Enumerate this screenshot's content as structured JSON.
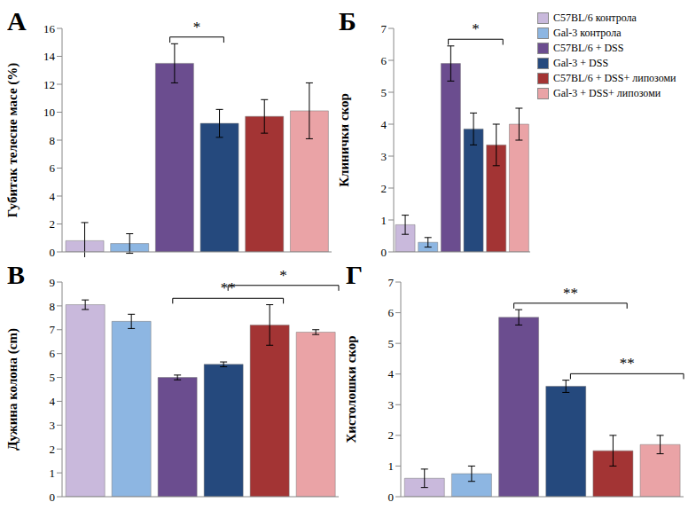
{
  "chart_data": [
    {
      "type": "bar",
      "label": "А",
      "y_label": "Губитак телесне масе (%)",
      "categories": [
        "C57BL/6 контрола",
        "Gal-3 контрола",
        "C57BL/6 + DSS",
        "Gal-3 + DSS",
        "C57BL/6 + DSS+ липозоми",
        "Gal-3 + DSS+ липозоми"
      ],
      "colors": [
        "#c9b9dc",
        "#8db6e2",
        "#6b4d8f",
        "#25497d",
        "#a33434",
        "#eaa3a6"
      ],
      "values": [
        0.8,
        0.6,
        13.5,
        9.2,
        9.7,
        10.1
      ],
      "errors": [
        1.3,
        0.7,
        1.4,
        1.0,
        1.2,
        2.0
      ],
      "ylim": [
        0,
        16
      ],
      "yticks": [
        0,
        2,
        4,
        6,
        8,
        10,
        12,
        14,
        16
      ],
      "tick_labels": "y",
      "annotations": [
        {
          "from": 2,
          "to": 3,
          "text": "*"
        }
      ]
    },
    {
      "type": "bar",
      "label": "Б",
      "y_label": "Клинички скор",
      "categories": [
        "C57BL/6 контрола",
        "Gal-3 контрола",
        "C57BL/6 + DSS",
        "Gal-3 + DSS",
        "C57BL/6 + DSS+ липозоми",
        "Gal-3 + DSS+ липозоми"
      ],
      "colors": [
        "#c9b9dc",
        "#8db6e2",
        "#6b4d8f",
        "#25497d",
        "#a33434",
        "#eaa3a6"
      ],
      "values": [
        0.85,
        0.3,
        5.9,
        3.85,
        3.35,
        4.0
      ],
      "errors": [
        0.3,
        0.15,
        0.55,
        0.5,
        0.65,
        0.5
      ],
      "ylim": [
        0,
        7
      ],
      "yticks": [
        0,
        1,
        2,
        3,
        4,
        5,
        6,
        7
      ],
      "tick_labels": "y",
      "legend": "right",
      "annotations": [
        {
          "from": 2,
          "to": 4,
          "text": "*"
        }
      ]
    },
    {
      "type": "bar",
      "label": "В",
      "y_label": "Дужина колона (cm)",
      "categories": [
        "C57BL/6 контрола",
        "Gal-3 контрола",
        "C57BL/6 + DSS",
        "Gal-3 + DSS",
        "C57BL/6 + DSS+ липозоми",
        "Gal-3 + DSS+ липозоми"
      ],
      "colors": [
        "#c9b9dc",
        "#8db6e2",
        "#6b4d8f",
        "#25497d",
        "#a33434",
        "#eaa3a6"
      ],
      "values": [
        8.05,
        7.35,
        5.0,
        5.55,
        7.2,
        6.9
      ],
      "errors": [
        0.2,
        0.3,
        0.1,
        0.1,
        0.85,
        0.1
      ],
      "ylim": [
        0,
        9
      ],
      "yticks": [
        0,
        1,
        2,
        3,
        4,
        5,
        6,
        7,
        8,
        9
      ],
      "tick_labels": "y",
      "annotations": [
        {
          "from": 2,
          "to": 4,
          "text": "**"
        },
        {
          "from": 3,
          "to": 5,
          "text": "*"
        }
      ]
    },
    {
      "type": "bar",
      "label": "Г",
      "y_label": "Хистолошки скор",
      "categories": [
        "C57BL/6 контрола",
        "Gal-3 контрола",
        "C57BL/6 + DSS",
        "Gal-3 + DSS",
        "C57BL/6 + DSS+ липозоми",
        "Gal-3 + DSS+ липозоми"
      ],
      "colors": [
        "#c9b9dc",
        "#8db6e2",
        "#6b4d8f",
        "#25497d",
        "#a33434",
        "#eaa3a6"
      ],
      "values": [
        0.6,
        0.75,
        5.85,
        3.6,
        1.5,
        1.7
      ],
      "errors": [
        0.3,
        0.25,
        0.25,
        0.2,
        0.5,
        0.3
      ],
      "ylim": [
        0,
        7
      ],
      "yticks": [
        0,
        1,
        2,
        3,
        4,
        5,
        6,
        7
      ],
      "tick_labels": "y",
      "annotations": [
        {
          "from": 2,
          "to": 4,
          "text": "**"
        },
        {
          "from": 3,
          "to": 5,
          "text": "**"
        }
      ]
    }
  ]
}
